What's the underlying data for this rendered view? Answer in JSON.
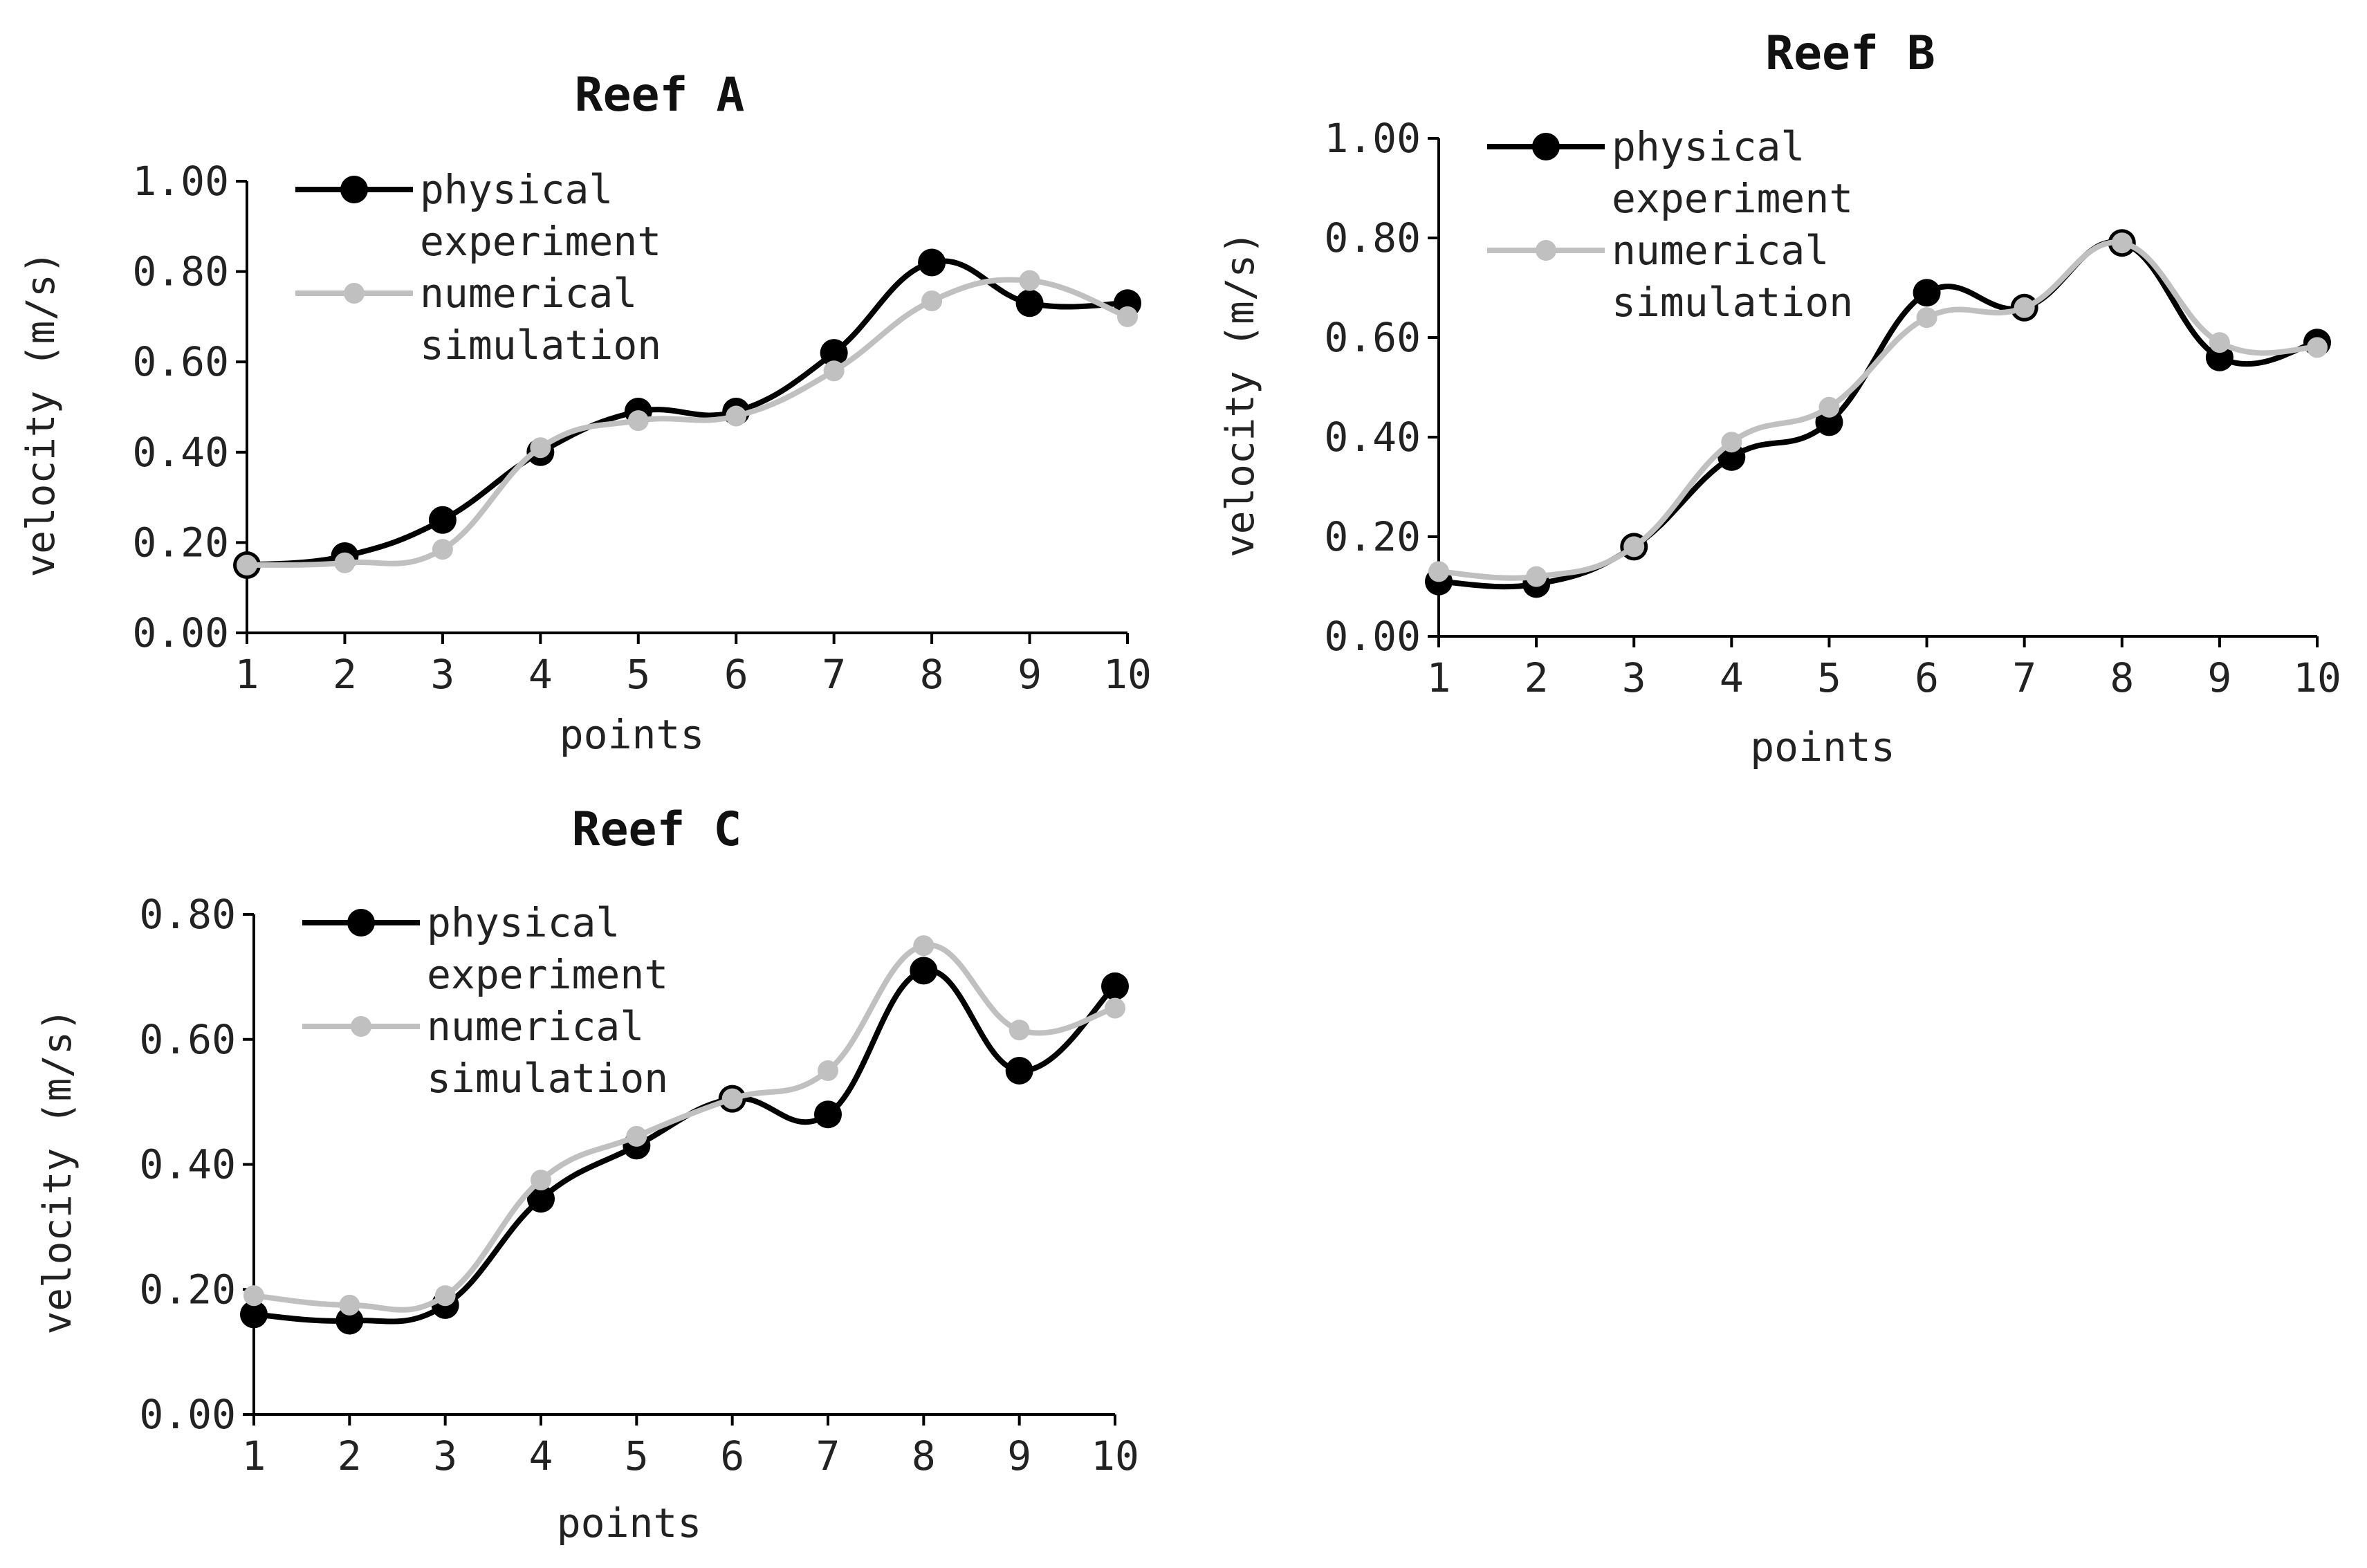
{
  "colors": {
    "physical": "#000000",
    "numerical": "#c0c0c0",
    "axis": "#000000",
    "text": "#222222"
  },
  "chart_data": [
    {
      "type": "line",
      "title": "Reef A",
      "xlabel": "points",
      "ylabel": "velocity (m/s)",
      "categories": [
        "1",
        "2",
        "3",
        "4",
        "5",
        "6",
        "7",
        "8",
        "9",
        "10"
      ],
      "ylim": [
        0,
        1
      ],
      "yticks": [
        "0.00",
        "0.20",
        "0.40",
        "0.60",
        "0.80",
        "1.00"
      ],
      "legend": {
        "position": "top-left",
        "entries": [
          [
            "physical",
            "experiment"
          ],
          [
            "numerical",
            "simulation"
          ]
        ]
      },
      "series": [
        {
          "name": "physical experiment",
          "values": [
            0.15,
            0.17,
            0.25,
            0.4,
            0.49,
            0.49,
            0.62,
            0.82,
            0.73,
            0.73
          ]
        },
        {
          "name": "numerical simulation",
          "values": [
            0.15,
            0.155,
            0.185,
            0.41,
            0.47,
            0.48,
            0.58,
            0.735,
            0.78,
            0.7
          ]
        }
      ]
    },
    {
      "type": "line",
      "title": "Reef B",
      "xlabel": "points",
      "ylabel": "velocity (m/s)",
      "categories": [
        "1",
        "2",
        "3",
        "4",
        "5",
        "6",
        "7",
        "8",
        "9",
        "10"
      ],
      "ylim": [
        0,
        1
      ],
      "yticks": [
        "0.00",
        "0.20",
        "0.40",
        "0.60",
        "0.80",
        "1.00"
      ],
      "legend": {
        "position": "top-left",
        "entries": [
          [
            "physical",
            "experiment"
          ],
          [
            "numerical",
            "simulation"
          ]
        ]
      },
      "series": [
        {
          "name": "physical experiment",
          "values": [
            0.11,
            0.105,
            0.18,
            0.36,
            0.43,
            0.69,
            0.66,
            0.79,
            0.56,
            0.59
          ]
        },
        {
          "name": "numerical simulation",
          "values": [
            0.13,
            0.12,
            0.18,
            0.39,
            0.46,
            0.64,
            0.66,
            0.79,
            0.59,
            0.58
          ]
        }
      ]
    },
    {
      "type": "line",
      "title": "Reef C",
      "xlabel": "points",
      "ylabel": "velocity (m/s)",
      "categories": [
        "1",
        "2",
        "3",
        "4",
        "5",
        "6",
        "7",
        "8",
        "9",
        "10"
      ],
      "ylim": [
        0,
        0.8
      ],
      "yticks": [
        "0.00",
        "0.20",
        "0.40",
        "0.60",
        "0.80"
      ],
      "legend": {
        "position": "top-left",
        "entries": [
          [
            "physical",
            "experiment"
          ],
          [
            "numerical",
            "simulation"
          ]
        ]
      },
      "series": [
        {
          "name": "physical experiment",
          "values": [
            0.16,
            0.15,
            0.175,
            0.345,
            0.43,
            0.505,
            0.48,
            0.71,
            0.55,
            0.685
          ]
        },
        {
          "name": "numerical simulation",
          "values": [
            0.19,
            0.175,
            0.19,
            0.375,
            0.445,
            0.505,
            0.55,
            0.75,
            0.615,
            0.65
          ]
        }
      ]
    }
  ]
}
